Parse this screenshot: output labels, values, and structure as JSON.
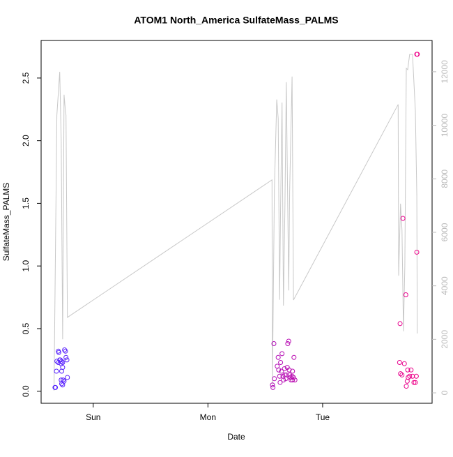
{
  "chart_data": {
    "type": "scatter",
    "title": "ATOM1 North_America SulfateMass_PALMS",
    "x_label": "Date",
    "y_label": "SulfateMass_PALMS",
    "xlim": [
      -10.9,
      70.9
    ],
    "xticks": [
      {
        "value": 0,
        "label": "Sun"
      },
      {
        "value": 24,
        "label": "Mon"
      },
      {
        "value": 48,
        "label": "Tue"
      }
    ],
    "ylim": [
      -0.096,
      2.8
    ],
    "yticks": [
      {
        "value": 0,
        "label": "0.0"
      },
      {
        "value": 0.5,
        "label": "0.5"
      },
      {
        "value": 1,
        "label": "1.0"
      },
      {
        "value": 1.5,
        "label": "1.5"
      },
      {
        "value": 2,
        "label": "2.0"
      },
      {
        "value": 2.5,
        "label": "2.5"
      }
    ],
    "y2lim": [
      -390,
      13170
    ],
    "y2ticks": [
      0,
      2000,
      4000,
      6000,
      8000,
      10000,
      12000
    ],
    "y2_color": "#bbbbbb",
    "color_gradient": [
      "#5522ff",
      "#ee0088"
    ],
    "x": [
      -8.0,
      -7.9,
      -7.7,
      -7.6,
      -7.3,
      -7.2,
      -7.3,
      -7.0,
      -6.9,
      -6.7,
      -6.6,
      -6.4,
      -6.7,
      -6.6,
      -6.4,
      -6.3,
      -6.1,
      -6.0,
      -5.8,
      -5.7,
      -5.5,
      -5.4,
      -6.6,
      -6.4,
      37.8,
      37.5,
      37.6,
      37.9,
      38.5,
      38.7,
      38.8,
      39.0,
      39.1,
      39.2,
      39.4,
      39.5,
      39.7,
      39.8,
      40.0,
      40.1,
      40.3,
      40.4,
      40.6,
      40.7,
      40.9,
      41.0,
      41.1,
      41.3,
      41.4,
      41.6,
      41.7,
      41.9,
      42.0,
      42.2,
      41.7,
      64.1,
      64.2,
      64.3,
      64.6,
      64.8,
      65.1,
      65.4,
      65.5,
      65.7,
      65.8,
      65.9,
      66.2,
      66.5,
      66.8,
      67.1,
      67.4,
      67.6,
      67.7,
      67.7,
      67.8
    ],
    "values": [
      0.03,
      0.03,
      0.16,
      0.24,
      0.32,
      0.31,
      0.23,
      0.25,
      0.25,
      0.22,
      0.24,
      0.23,
      0.09,
      0.06,
      0.05,
      0.09,
      0.08,
      0.33,
      0.32,
      0.27,
      0.25,
      0.11,
      0.16,
      0.19,
      0.38,
      0.05,
      0.03,
      0.1,
      0.2,
      0.27,
      0.17,
      0.12,
      0.07,
      0.23,
      0.16,
      0.3,
      0.12,
      0.09,
      0.18,
      0.13,
      0.1,
      0.13,
      0.19,
      0.38,
      0.4,
      0.17,
      0.13,
      0.11,
      0.09,
      0.12,
      0.09,
      0.11,
      0.27,
      0.09,
      0.16,
      0.23,
      0.54,
      0.14,
      0.13,
      1.38,
      0.22,
      0.77,
      0.04,
      0.08,
      0.17,
      0.11,
      0.12,
      0.17,
      0.12,
      0.07,
      0.07,
      0.12,
      1.11,
      2.69,
      2.69
    ],
    "line": {
      "axis": "y2",
      "color": "#c8c8c8",
      "x": [
        -8.2,
        -7.6,
        -7.0,
        -6.7,
        -6.4,
        -6.1,
        -5.8,
        -5.7,
        -5.4,
        37.4,
        37.5,
        37.9,
        38.4,
        38.7,
        39.0,
        39.2,
        39.5,
        39.8,
        40.1,
        40.4,
        40.9,
        41.1,
        41.6,
        41.9,
        63.8,
        63.9,
        64.3,
        64.6,
        64.9,
        65.2,
        65.5,
        65.8,
        66.2,
        66.8,
        67.4,
        67.7,
        67.8
      ],
      "values": [
        80,
        10380,
        12000,
        9470,
        2000,
        11140,
        10500,
        10380,
        2820,
        7960,
        300,
        7570,
        10960,
        10250,
        3480,
        6890,
        10850,
        3260,
        6890,
        11610,
        3830,
        7520,
        11820,
        3470,
        10780,
        4380,
        7070,
        6080,
        2300,
        4750,
        12130,
        12080,
        12650,
        12650,
        10540,
        7360,
        2220
      ]
    }
  }
}
